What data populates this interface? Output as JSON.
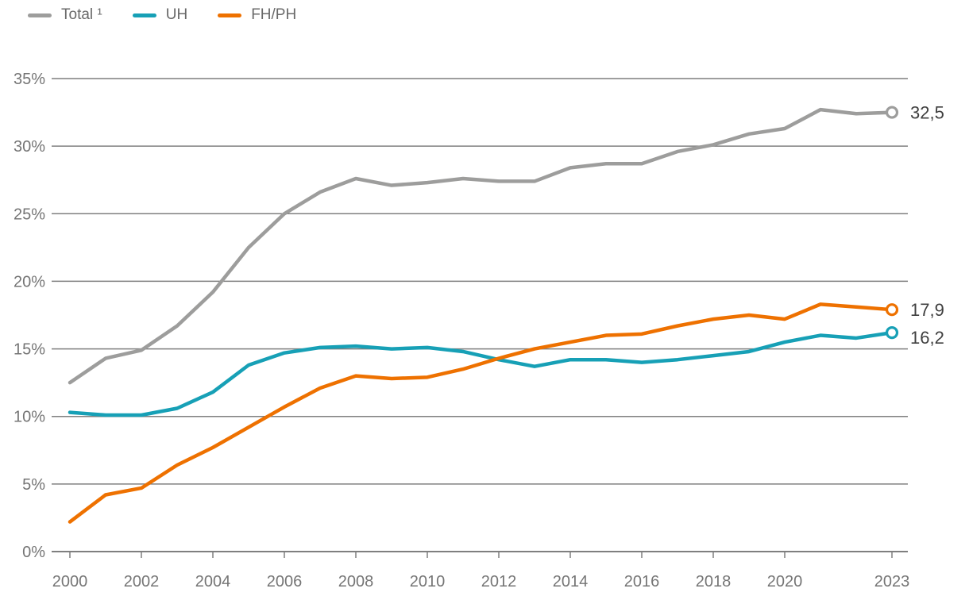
{
  "legend": {
    "items": [
      {
        "label": "Total ¹",
        "color": "#9d9d9c"
      },
      {
        "label": "UH",
        "color": "#17a0b6"
      },
      {
        "label": "FH/PH",
        "color": "#ee7100"
      }
    ]
  },
  "chart_data": {
    "type": "line",
    "title": "",
    "x": [
      2000,
      2001,
      2002,
      2003,
      2004,
      2005,
      2006,
      2007,
      2008,
      2009,
      2010,
      2011,
      2012,
      2013,
      2014,
      2015,
      2016,
      2017,
      2018,
      2019,
      2020,
      2021,
      2022,
      2023
    ],
    "xticks": [
      2000,
      2002,
      2004,
      2006,
      2008,
      2010,
      2012,
      2014,
      2016,
      2018,
      2020,
      2023
    ],
    "yticks": [
      0,
      5,
      10,
      15,
      20,
      25,
      30,
      35
    ],
    "ytick_suffix": "%",
    "ylim": [
      0,
      35
    ],
    "grid": "horizontal",
    "legend_position": "top-left",
    "decimal_separator": ",",
    "series": [
      {
        "name": "Total ¹",
        "key": "total",
        "color": "#9d9d9c",
        "end_label": "32,5",
        "values": [
          12.5,
          14.3,
          14.9,
          16.7,
          19.2,
          22.5,
          25.0,
          26.6,
          27.6,
          27.1,
          27.3,
          27.6,
          27.4,
          27.4,
          28.4,
          28.7,
          28.7,
          29.6,
          30.1,
          30.9,
          31.3,
          32.7,
          32.4,
          32.5
        ]
      },
      {
        "name": "UH",
        "key": "uh",
        "color": "#17a0b6",
        "end_label": "16,2",
        "values": [
          10.3,
          10.1,
          10.1,
          10.6,
          11.8,
          13.8,
          14.7,
          15.1,
          15.2,
          15.0,
          15.1,
          14.8,
          14.2,
          13.7,
          14.2,
          14.2,
          14.0,
          14.2,
          14.5,
          14.8,
          15.5,
          16.0,
          15.8,
          16.2
        ]
      },
      {
        "name": "FH/PH",
        "key": "fh-ph",
        "color": "#ee7100",
        "end_label": "17,9",
        "values": [
          2.2,
          4.2,
          4.7,
          6.4,
          7.7,
          9.2,
          10.7,
          12.1,
          13.0,
          12.8,
          12.9,
          13.5,
          14.3,
          15.0,
          15.5,
          16.0,
          16.1,
          16.7,
          17.2,
          17.5,
          17.2,
          18.3,
          18.1,
          17.9
        ]
      }
    ],
    "colors": {
      "grid": "#7f7f7f",
      "tick_text": "#757575",
      "value_label_text": "#3f3f3f",
      "legend_text": "#696969",
      "background": "#ffffff"
    }
  }
}
